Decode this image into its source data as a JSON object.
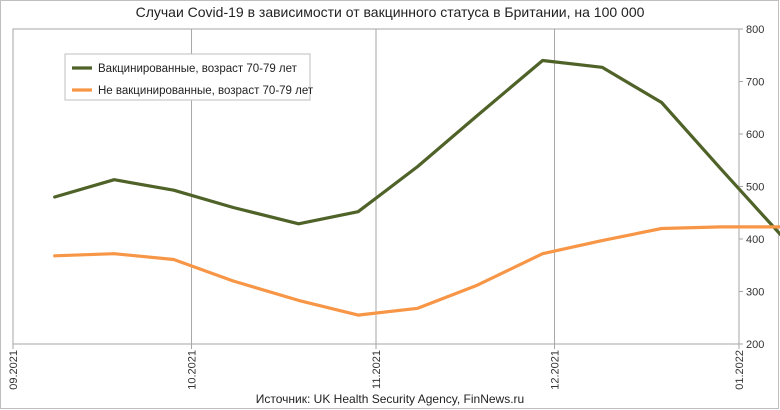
{
  "chart_data": {
    "type": "line",
    "title": "Случаи Covid-19 в зависимости от вакцинного статуса в Британии, на 100 000",
    "source": "Источник: UK Health Security Agency, FinNews.ru",
    "x_ticks": [
      "09.2021",
      "10.2021",
      "11.2021",
      "12.2021",
      "01.2022"
    ],
    "x_range": [
      "2021-09-01",
      "2022-01-01"
    ],
    "ylim": [
      200,
      800
    ],
    "y_ticks": [
      200,
      300,
      400,
      500,
      600,
      700,
      800
    ],
    "y_axis_side": "right",
    "grid": "vertical",
    "legend_position": "top-left",
    "series": [
      {
        "name": "Вакцинированные, возраст 70-79 лет",
        "color": "#4f6228",
        "points": [
          {
            "x": "2021-09-08",
            "y": 480
          },
          {
            "x": "2021-09-18",
            "y": 513
          },
          {
            "x": "2021-09-28",
            "y": 493
          },
          {
            "x": "2021-10-08",
            "y": 460
          },
          {
            "x": "2021-10-19",
            "y": 429
          },
          {
            "x": "2021-10-29",
            "y": 452
          },
          {
            "x": "2021-11-08",
            "y": 538
          },
          {
            "x": "2021-11-18",
            "y": 635
          },
          {
            "x": "2021-11-29",
            "y": 740
          },
          {
            "x": "2021-12-09",
            "y": 727
          },
          {
            "x": "2021-12-19",
            "y": 660
          },
          {
            "x": "2021-12-29",
            "y": 533
          },
          {
            "x": "2022-01-08",
            "y": 408
          }
        ]
      },
      {
        "name": "Не вакцинированные, возраст 70-79 лет",
        "color": "#f79646",
        "points": [
          {
            "x": "2021-09-08",
            "y": 368
          },
          {
            "x": "2021-09-18",
            "y": 372
          },
          {
            "x": "2021-09-28",
            "y": 361
          },
          {
            "x": "2021-10-08",
            "y": 320
          },
          {
            "x": "2021-10-19",
            "y": 283
          },
          {
            "x": "2021-10-29",
            "y": 255
          },
          {
            "x": "2021-11-08",
            "y": 268
          },
          {
            "x": "2021-11-18",
            "y": 312
          },
          {
            "x": "2021-11-29",
            "y": 372
          },
          {
            "x": "2021-12-09",
            "y": 397
          },
          {
            "x": "2021-12-19",
            "y": 420
          },
          {
            "x": "2021-12-29",
            "y": 423
          },
          {
            "x": "2022-01-08",
            "y": 423
          }
        ]
      }
    ]
  }
}
